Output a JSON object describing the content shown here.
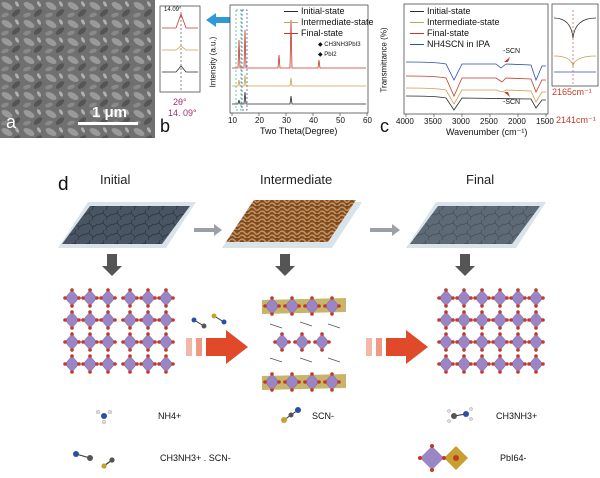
{
  "panel_a": {
    "letter": "a",
    "scale_text": "1 μm"
  },
  "panel_b": {
    "letter": "b",
    "inset_peak": "14.09°",
    "inset_axis": "2θ°",
    "inset_value": "14. 09°",
    "xlabel": "Two Theta(Degree)",
    "ylabel": "Intensity (a.u.)",
    "ticks": [
      "10",
      "20",
      "30",
      "40",
      "50",
      "60"
    ],
    "legend": [
      "Initial-state",
      "Intermediate-state",
      "Final-state"
    ],
    "markers": [
      "CH3NH3PbI3",
      "PbI2"
    ]
  },
  "panel_c": {
    "letter": "c",
    "xlabel": "Wavenumber (cm⁻¹)",
    "ylabel": "Transmittance (%)",
    "ticks": [
      "4000",
      "3500",
      "3000",
      "2500",
      "2000",
      "1500"
    ],
    "legend": [
      "Initial-state",
      "Intermediate-state",
      "Final-state",
      "NH4SCN in IPA"
    ],
    "scn_top": "-SCN",
    "scn_bottom": "-SCN",
    "peak1": "2165cm⁻¹",
    "peak2": "2141cm⁻¹"
  },
  "panel_d": {
    "letter": "d",
    "stages": [
      "Initial",
      "Intermediate",
      "Final"
    ],
    "labels": {
      "nh4": "NH4+",
      "scn_mid": "SCN-",
      "ch3nh3": "CH3NH3+",
      "pbi6": "PbI64-",
      "bottom_legend": "CH3NH3+ . SCN-"
    }
  },
  "colors": {
    "initial": "#2b2b2b",
    "intermediate": "#c8a04a",
    "final": "#c43a2a",
    "nh4scn": "#2b4fa8",
    "arrow": "#e04a2a",
    "film_gray": "#4a5563",
    "film_brown": "#a06a3a",
    "octa": "#9a86c4"
  }
}
